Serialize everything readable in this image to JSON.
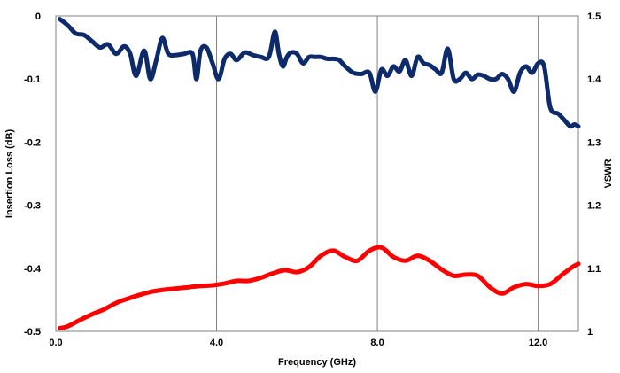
{
  "chart_data": {
    "type": "line",
    "xlabel": "Frequency (GHz)",
    "ylabel": "Insertion Loss (dB)",
    "y2label": "VSWR",
    "xlim": [
      0,
      13
    ],
    "ylim": [
      -0.5,
      0
    ],
    "y2lim": [
      1,
      1.5
    ],
    "x_ticks": [
      0,
      4,
      8,
      12
    ],
    "x_tick_labels": [
      "0.0",
      "4.0",
      "8.0",
      "12.0"
    ],
    "y_ticks": [
      0,
      -0.1,
      -0.2,
      -0.3,
      -0.4,
      -0.5
    ],
    "y_tick_labels": [
      "0",
      "-0.1",
      "-0.2",
      "-0.3",
      "-0.4",
      "-0.5"
    ],
    "y2_ticks": [
      1.5,
      1.4,
      1.3,
      1.2,
      1.1,
      1
    ],
    "y2_tick_labels": [
      "1.5",
      "1.4",
      "1.3",
      "1.2",
      "1.1",
      "1"
    ],
    "grid": "vertical",
    "colors": {
      "insertion_loss": "#0d2a6b",
      "vswr": "#ff0000",
      "grid": "#808080",
      "frame": "#808080"
    },
    "series": [
      {
        "key": "insertion_loss",
        "axis": "left",
        "x": [
          0.1,
          0.3,
          0.5,
          0.7,
          0.9,
          1.1,
          1.3,
          1.5,
          1.7,
          1.85,
          2.0,
          2.2,
          2.35,
          2.5,
          2.65,
          2.8,
          3.0,
          3.2,
          3.4,
          3.5,
          3.6,
          3.75,
          3.9,
          4.05,
          4.2,
          4.35,
          4.5,
          4.7,
          4.9,
          5.1,
          5.3,
          5.45,
          5.55,
          5.65,
          5.75,
          5.85,
          6.0,
          6.15,
          6.3,
          6.45,
          6.6,
          6.75,
          6.9,
          7.05,
          7.2,
          7.4,
          7.6,
          7.8,
          7.95,
          8.1,
          8.25,
          8.4,
          8.55,
          8.7,
          8.85,
          9.0,
          9.15,
          9.3,
          9.45,
          9.6,
          9.75,
          9.9,
          10.05,
          10.2,
          10.35,
          10.5,
          10.65,
          10.8,
          10.95,
          11.1,
          11.25,
          11.4,
          11.55,
          11.7,
          11.85,
          12.0,
          12.15,
          12.3,
          12.5,
          12.65,
          12.8,
          12.9,
          13.0
        ],
        "values": [
          -0.005,
          -0.015,
          -0.028,
          -0.03,
          -0.04,
          -0.05,
          -0.045,
          -0.06,
          -0.048,
          -0.06,
          -0.095,
          -0.055,
          -0.1,
          -0.07,
          -0.035,
          -0.06,
          -0.062,
          -0.06,
          -0.06,
          -0.1,
          -0.055,
          -0.05,
          -0.075,
          -0.1,
          -0.068,
          -0.06,
          -0.07,
          -0.058,
          -0.062,
          -0.065,
          -0.065,
          -0.025,
          -0.06,
          -0.08,
          -0.065,
          -0.058,
          -0.06,
          -0.075,
          -0.065,
          -0.065,
          -0.065,
          -0.068,
          -0.068,
          -0.07,
          -0.08,
          -0.09,
          -0.092,
          -0.09,
          -0.12,
          -0.085,
          -0.095,
          -0.08,
          -0.088,
          -0.07,
          -0.095,
          -0.065,
          -0.075,
          -0.078,
          -0.085,
          -0.09,
          -0.052,
          -0.1,
          -0.1,
          -0.09,
          -0.1,
          -0.093,
          -0.095,
          -0.1,
          -0.1,
          -0.092,
          -0.1,
          -0.12,
          -0.09,
          -0.08,
          -0.09,
          -0.075,
          -0.08,
          -0.145,
          -0.155,
          -0.165,
          -0.175,
          -0.172,
          -0.175
        ]
      },
      {
        "key": "vswr",
        "axis": "right",
        "x": [
          0.1,
          0.3,
          0.6,
          0.9,
          1.2,
          1.5,
          1.8,
          2.1,
          2.4,
          2.7,
          3.0,
          3.3,
          3.6,
          3.9,
          4.2,
          4.5,
          4.8,
          5.1,
          5.4,
          5.7,
          6.0,
          6.3,
          6.6,
          6.9,
          7.2,
          7.5,
          7.8,
          8.1,
          8.4,
          8.7,
          9.0,
          9.3,
          9.6,
          9.9,
          10.2,
          10.5,
          10.8,
          11.1,
          11.4,
          11.7,
          12.0,
          12.3,
          12.6,
          12.85,
          13.0
        ],
        "values": [
          1.005,
          1.008,
          1.018,
          1.027,
          1.035,
          1.045,
          1.052,
          1.058,
          1.063,
          1.066,
          1.068,
          1.07,
          1.072,
          1.073,
          1.076,
          1.08,
          1.08,
          1.085,
          1.092,
          1.097,
          1.094,
          1.102,
          1.12,
          1.128,
          1.118,
          1.112,
          1.128,
          1.133,
          1.118,
          1.112,
          1.12,
          1.112,
          1.098,
          1.088,
          1.09,
          1.088,
          1.07,
          1.06,
          1.07,
          1.075,
          1.072,
          1.075,
          1.09,
          1.102,
          1.107
        ]
      }
    ]
  }
}
